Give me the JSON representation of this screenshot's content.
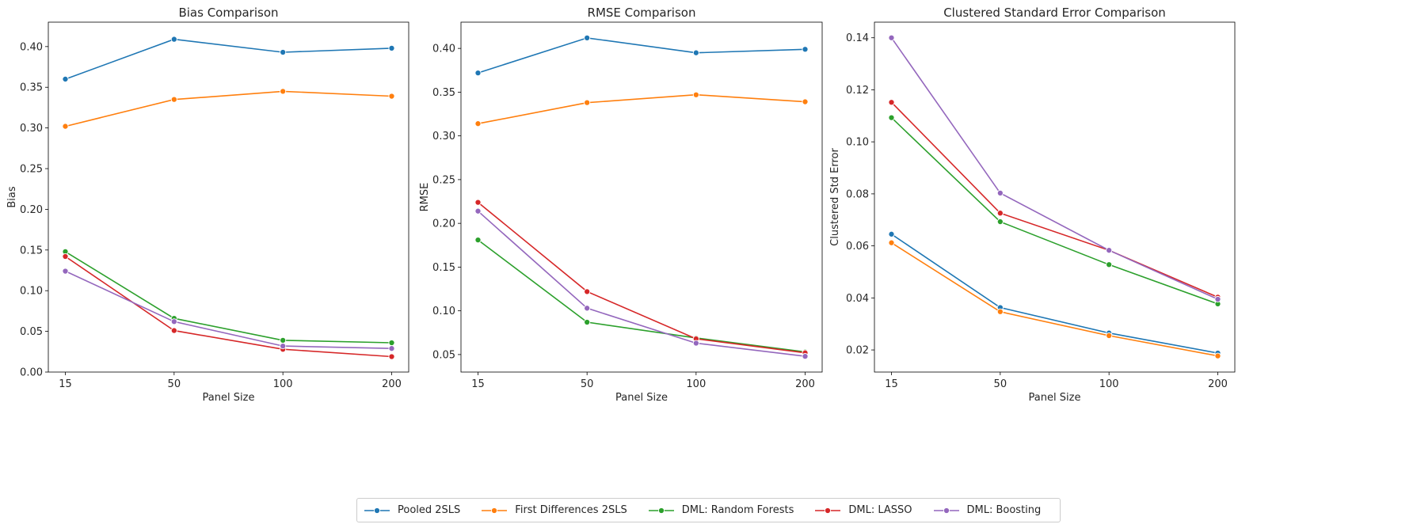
{
  "chart_data": [
    {
      "type": "line",
      "title": "Bias Comparison",
      "xlabel": "Panel Size",
      "ylabel": "Bias",
      "categories": [
        "15",
        "50",
        "100",
        "200"
      ],
      "ylim": [
        0,
        0.43
      ],
      "yticks": [
        "0.00",
        "0.05",
        "0.10",
        "0.15",
        "0.20",
        "0.25",
        "0.30",
        "0.35",
        "0.40"
      ],
      "series": [
        {
          "name": "Pooled 2SLS",
          "color": "#1f77b4",
          "values": [
            0.36,
            0.409,
            0.393,
            0.398
          ]
        },
        {
          "name": "First Differences 2SLS",
          "color": "#ff7f0e",
          "values": [
            0.302,
            0.335,
            0.345,
            0.339
          ]
        },
        {
          "name": "DML: Random Forests",
          "color": "#2ca02c",
          "values": [
            0.148,
            0.066,
            0.039,
            0.036
          ]
        },
        {
          "name": "DML: LASSO",
          "color": "#d62728",
          "values": [
            0.142,
            0.051,
            0.028,
            0.019
          ]
        },
        {
          "name": "DML: Boosting",
          "color": "#9467bd",
          "values": [
            0.124,
            0.062,
            0.032,
            0.029
          ]
        }
      ]
    },
    {
      "type": "line",
      "title": "RMSE Comparison",
      "xlabel": "Panel Size",
      "ylabel": "RMSE",
      "categories": [
        "15",
        "50",
        "100",
        "200"
      ],
      "ylim": [
        0.03,
        0.43
      ],
      "yticks": [
        "0.05",
        "0.10",
        "0.15",
        "0.20",
        "0.25",
        "0.30",
        "0.35",
        "0.40"
      ],
      "series": [
        {
          "name": "Pooled 2SLS",
          "color": "#1f77b4",
          "values": [
            0.372,
            0.412,
            0.395,
            0.399
          ]
        },
        {
          "name": "First Differences 2SLS",
          "color": "#ff7f0e",
          "values": [
            0.314,
            0.338,
            0.347,
            0.339
          ]
        },
        {
          "name": "DML: Random Forests",
          "color": "#2ca02c",
          "values": [
            0.181,
            0.087,
            0.069,
            0.053
          ]
        },
        {
          "name": "DML: LASSO",
          "color": "#d62728",
          "values": [
            0.224,
            0.122,
            0.068,
            0.052
          ]
        },
        {
          "name": "DML: Boosting",
          "color": "#9467bd",
          "values": [
            0.214,
            0.103,
            0.063,
            0.048
          ]
        }
      ]
    },
    {
      "type": "line",
      "title": "Clustered Standard Error Comparison",
      "xlabel": "Panel Size",
      "ylabel": "Clustered Std Error",
      "categories": [
        "15",
        "50",
        "100",
        "200"
      ],
      "ylim": [
        0.0115,
        0.146
      ],
      "yticks": [
        "0.02",
        "0.04",
        "0.06",
        "0.08",
        "0.10",
        "0.12",
        "0.14"
      ],
      "series": [
        {
          "name": "Pooled 2SLS",
          "color": "#1f77b4",
          "values": [
            0.0645,
            0.0363,
            0.0265,
            0.0188
          ]
        },
        {
          "name": "First Differences 2SLS",
          "color": "#ff7f0e",
          "values": [
            0.0612,
            0.0347,
            0.0255,
            0.0177
          ]
        },
        {
          "name": "DML: Random Forests",
          "color": "#2ca02c",
          "values": [
            0.1093,
            0.0693,
            0.0528,
            0.0377
          ]
        },
        {
          "name": "DML: LASSO",
          "color": "#d62728",
          "values": [
            0.1152,
            0.0726,
            0.0583,
            0.0403
          ]
        },
        {
          "name": "DML: Boosting",
          "color": "#9467bd",
          "values": [
            0.14,
            0.0803,
            0.0583,
            0.0395
          ]
        }
      ]
    }
  ],
  "legend": {
    "placement": "bottom-center",
    "items": [
      {
        "label": "Pooled 2SLS",
        "color": "#1f77b4"
      },
      {
        "label": "First Differences 2SLS",
        "color": "#ff7f0e"
      },
      {
        "label": "DML: Random Forests",
        "color": "#2ca02c"
      },
      {
        "label": "DML: LASSO",
        "color": "#d62728"
      },
      {
        "label": "DML: Boosting",
        "color": "#9467bd"
      }
    ]
  }
}
